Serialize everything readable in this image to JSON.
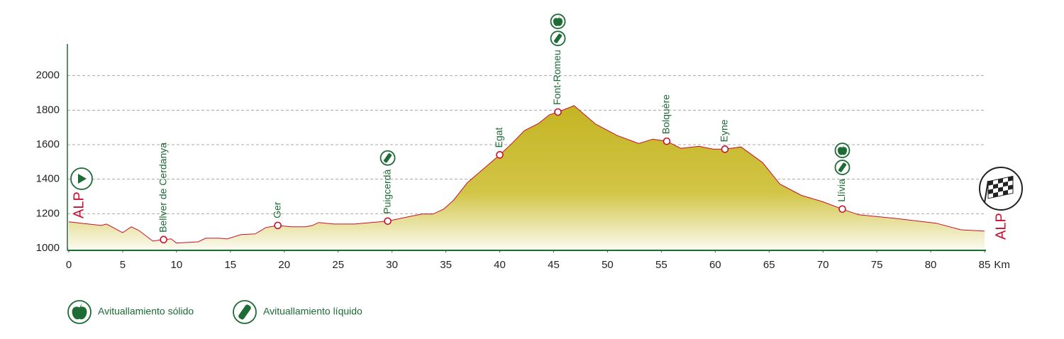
{
  "chart_data": {
    "type": "area",
    "x": [
      0,
      3,
      3.5,
      5,
      5.8,
      6.5,
      7.8,
      8.7,
      9.5,
      10,
      12,
      12.7,
      14,
      14.7,
      16,
      17.3,
      18.3,
      19.4,
      20.6,
      22,
      22.6,
      23.2,
      24.6,
      26.5,
      29.6,
      31.8,
      32.8,
      33.8,
      34.8,
      35.7,
      37,
      38.4,
      40,
      41,
      42.3,
      43.6,
      44.6,
      45.4,
      46.9,
      48.9,
      50.9,
      52.9,
      54.2,
      55.5,
      56.8,
      58.5,
      59.8,
      60.9,
      62.4,
      64.4,
      66,
      68,
      70,
      71.8,
      73.3,
      76.6,
      80.5,
      82.8,
      85
    ],
    "values": [
      1153,
      1132,
      1140,
      1090,
      1124,
      1103,
      1041,
      1050,
      1054,
      1030,
      1037,
      1058,
      1058,
      1054,
      1079,
      1083,
      1120,
      1132,
      1124,
      1124,
      1132,
      1149,
      1140,
      1140,
      1157,
      1186,
      1198,
      1198,
      1227,
      1277,
      1380,
      1455,
      1541,
      1599,
      1682,
      1723,
      1773,
      1789,
      1826,
      1719,
      1653,
      1607,
      1632,
      1620,
      1579,
      1591,
      1574,
      1574,
      1587,
      1496,
      1372,
      1306,
      1269,
      1227,
      1194,
      1174,
      1145,
      1107,
      1099
    ],
    "line_color": "#c8102e",
    "xlim": [
      0,
      85
    ],
    "xticks": [
      0,
      5,
      10,
      15,
      20,
      25,
      30,
      35,
      40,
      45,
      50,
      55,
      60,
      65,
      70,
      75,
      80,
      85
    ],
    "x_unit": "Km",
    "ylim": [
      1000,
      2200
    ],
    "yticks": [
      1000,
      1200,
      1400,
      1600,
      1800,
      2000
    ],
    "grid": true,
    "start_label": "ALP",
    "finish_label": "ALP",
    "waypoints": [
      {
        "name": "Bellver de Cerdanya",
        "km": 8.8,
        "elevation": 1050,
        "feeds": []
      },
      {
        "name": "Ger",
        "km": 19.4,
        "elevation": 1132,
        "feeds": []
      },
      {
        "name": "Puigcerdà",
        "km": 29.6,
        "elevation": 1157,
        "feeds": [
          1
        ]
      },
      {
        "name": "Egat",
        "km": 40,
        "elevation": 1541,
        "feeds": []
      },
      {
        "name": "Font-Romeu",
        "km": 45.4,
        "elevation": 1789,
        "feeds": [
          1,
          0
        ]
      },
      {
        "name": "Bolquère",
        "km": 55.5,
        "elevation": 1620,
        "feeds": []
      },
      {
        "name": "Eyne",
        "km": 60.9,
        "elevation": 1574,
        "feeds": []
      },
      {
        "name": "Llívia",
        "km": 71.8,
        "elevation": 1227,
        "feeds": [
          1,
          0
        ]
      }
    ],
    "legend": [
      "Avituallamiento sólido",
      "Avituallamiento líquido"
    ]
  }
}
